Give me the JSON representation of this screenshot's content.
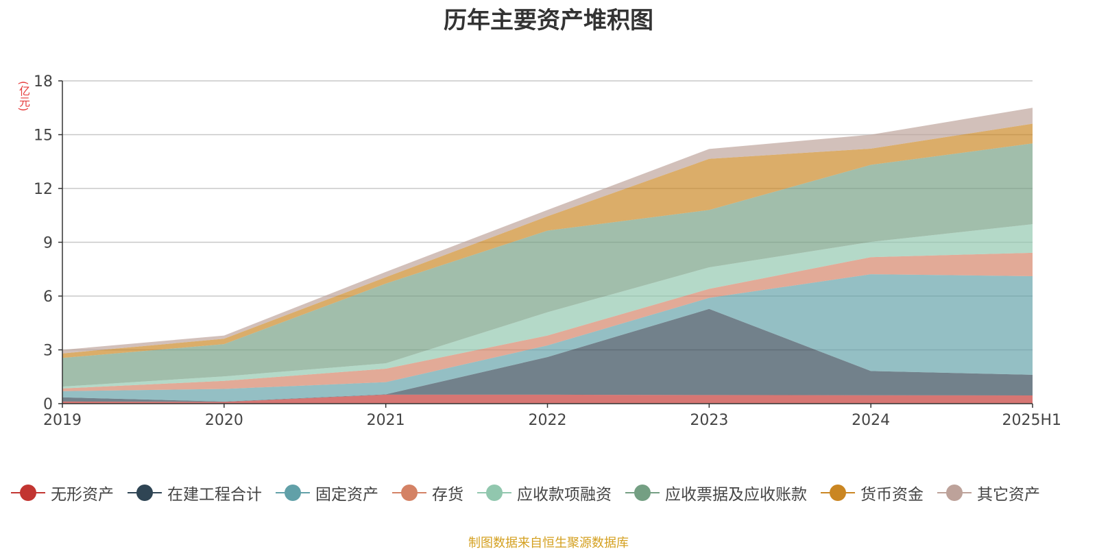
{
  "title": "历年主要资产堆积图",
  "source": "制图数据来自恒生聚源数据库",
  "chart_data": {
    "type": "area",
    "stacked": true,
    "unit": "(亿元)",
    "categories": [
      "2019",
      "2020",
      "2021",
      "2022",
      "2023",
      "2024",
      "2025H1"
    ],
    "y_ticks": [
      0,
      3,
      6,
      9,
      12,
      15,
      18
    ],
    "ylim": [
      0,
      18
    ],
    "grid": true,
    "legend_position": "bottom",
    "series": [
      {
        "name": "无形资产",
        "color": "#c23531",
        "values": [
          0.12,
          0.1,
          0.5,
          0.5,
          0.48,
          0.47,
          0.46
        ]
      },
      {
        "name": "在建工程合计",
        "color": "#2f4554",
        "values": [
          0.23,
          0.02,
          0.02,
          2.1,
          4.8,
          1.35,
          1.15
        ]
      },
      {
        "name": "固定资产",
        "color": "#61a0a8",
        "values": [
          0.35,
          0.7,
          0.68,
          0.65,
          0.62,
          5.4,
          5.5
        ]
      },
      {
        "name": "存货",
        "color": "#d48265",
        "values": [
          0.15,
          0.45,
          0.75,
          0.55,
          0.5,
          0.95,
          1.3
        ]
      },
      {
        "name": "应收款项融资",
        "color": "#91c7ae",
        "values": [
          0.1,
          0.25,
          0.3,
          1.3,
          1.2,
          0.85,
          1.6
        ]
      },
      {
        "name": "应收票据及应收账款",
        "color": "#749f83",
        "values": [
          1.6,
          1.8,
          4.45,
          4.55,
          3.2,
          4.3,
          4.5
        ]
      },
      {
        "name": "货币资金",
        "color": "#ca8622",
        "values": [
          0.25,
          0.3,
          0.35,
          0.8,
          2.85,
          0.9,
          1.1
        ]
      },
      {
        "name": "其它资产",
        "color": "#bda29a",
        "values": [
          0.2,
          0.18,
          0.3,
          0.35,
          0.55,
          0.78,
          0.89
        ]
      }
    ]
  }
}
